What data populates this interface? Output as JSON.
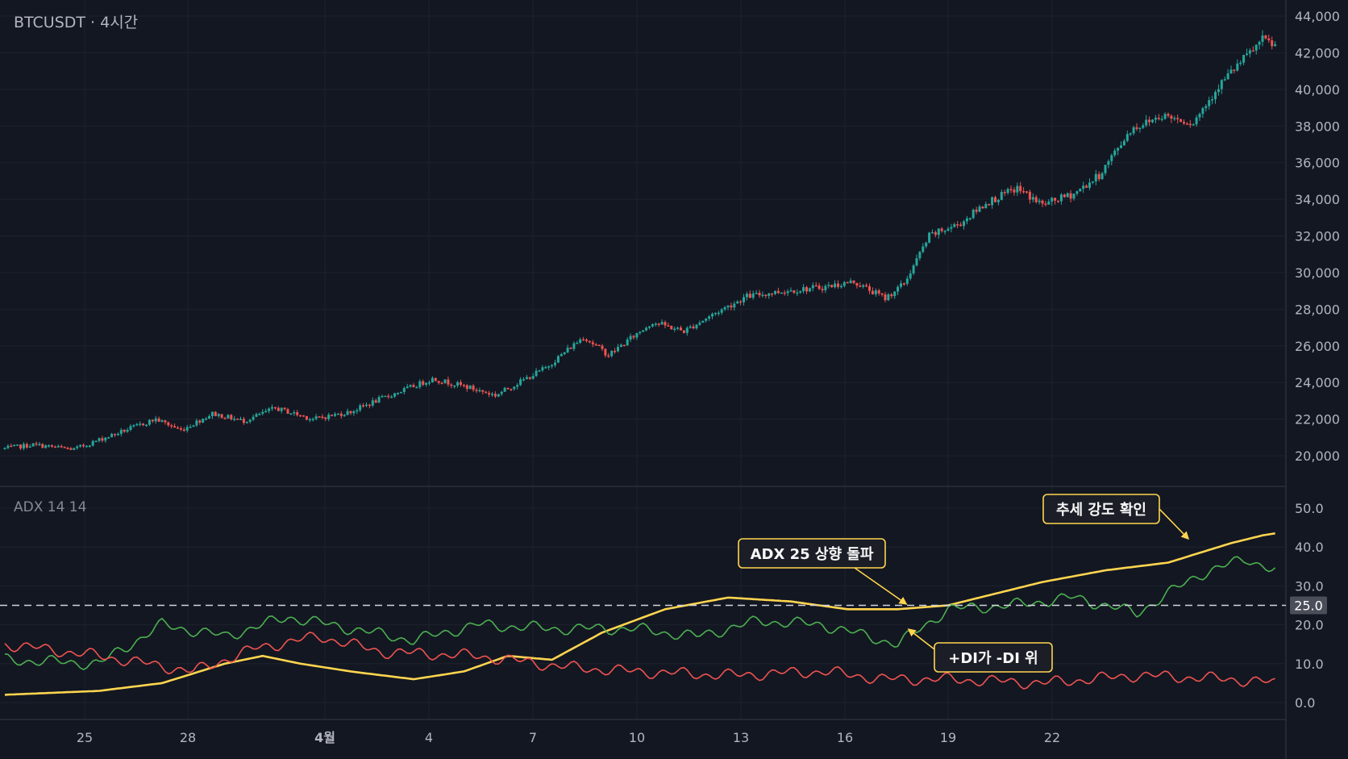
{
  "chart_data": [
    {
      "type": "candlestick",
      "title": "BTCUSDT · 4시간",
      "y_axis_ticks": [
        "20,000",
        "22,000",
        "24,000",
        "26,000",
        "28,000",
        "30,000",
        "32,000",
        "34,000",
        "36,000",
        "38,000",
        "40,000",
        "42,000",
        "44,000"
      ],
      "ylim": [
        19000,
        45000
      ],
      "x_axis_ticks": [
        "25",
        "28",
        "4월",
        "4",
        "7",
        "10",
        "13",
        "16",
        "19",
        "22"
      ],
      "x_axis_emphasized": "4월",
      "colors": {
        "up": "#26a69a",
        "down": "#ef5350",
        "background": "#131722",
        "grid": "#1f2430"
      },
      "price_path": [
        [
          0,
          20400
        ],
        [
          9,
          20600
        ],
        [
          22,
          20350
        ],
        [
          32,
          21000
        ],
        [
          48,
          22000
        ],
        [
          56,
          21400
        ],
        [
          66,
          22300
        ],
        [
          76,
          21900
        ],
        [
          86,
          22600
        ],
        [
          98,
          22000
        ],
        [
          110,
          22400
        ],
        [
          118,
          23000
        ],
        [
          130,
          23800
        ],
        [
          136,
          24200
        ],
        [
          146,
          23800
        ],
        [
          156,
          23300
        ],
        [
          172,
          24800
        ],
        [
          184,
          26500
        ],
        [
          192,
          25500
        ],
        [
          206,
          27300
        ],
        [
          216,
          26800
        ],
        [
          226,
          27800
        ],
        [
          236,
          28700
        ],
        [
          248,
          29000
        ],
        [
          260,
          29200
        ],
        [
          270,
          29500
        ],
        [
          280,
          28600
        ],
        [
          286,
          29400
        ],
        [
          294,
          32000
        ],
        [
          304,
          32700
        ],
        [
          312,
          33800
        ],
        [
          322,
          34600
        ],
        [
          330,
          33700
        ],
        [
          340,
          34300
        ],
        [
          348,
          35300
        ],
        [
          358,
          37800
        ],
        [
          368,
          38600
        ],
        [
          378,
          38200
        ],
        [
          386,
          40200
        ],
        [
          392,
          41300
        ],
        [
          400,
          42700
        ],
        [
          404,
          42400
        ]
      ],
      "num_candles": 405
    },
    {
      "type": "line",
      "title": "ADX 14 14",
      "y_axis_ticks": [
        "0.0",
        "10.0",
        "20.0",
        "30.0",
        "40.0",
        "50.0"
      ],
      "ylim": [
        -3,
        53
      ],
      "threshold": {
        "value": 25,
        "label": "25.0"
      },
      "series": [
        {
          "name": "ADX",
          "color": "#ffd54f",
          "points": [
            [
              0,
              2
            ],
            [
              30,
              3
            ],
            [
              50,
              5
            ],
            [
              70,
              10
            ],
            [
              82,
              12
            ],
            [
              94,
              10
            ],
            [
              110,
              8
            ],
            [
              130,
              6
            ],
            [
              146,
              8
            ],
            [
              160,
              12
            ],
            [
              174,
              11
            ],
            [
              190,
              18
            ],
            [
              210,
              24
            ],
            [
              230,
              27
            ],
            [
              250,
              26
            ],
            [
              268,
              24
            ],
            [
              284,
              24
            ],
            [
              300,
              25
            ],
            [
              330,
              31
            ],
            [
              350,
              34
            ],
            [
              370,
              36
            ],
            [
              390,
              41
            ],
            [
              400,
              43
            ],
            [
              404,
              43.5
            ]
          ]
        },
        {
          "name": "+DI",
          "color": "#4caf50",
          "points": [
            [
              0,
              11
            ],
            [
              30,
              10
            ],
            [
              50,
              20
            ],
            [
              70,
              17
            ],
            [
              90,
              22
            ],
            [
              110,
              19
            ],
            [
              130,
              16
            ],
            [
              150,
              20
            ],
            [
              175,
              19
            ],
            [
              200,
              19
            ],
            [
              220,
              17
            ],
            [
              240,
              21
            ],
            [
              260,
              20
            ],
            [
              284,
              15
            ],
            [
              300,
              24
            ],
            [
              320,
              25
            ],
            [
              340,
              27
            ],
            [
              360,
              23
            ],
            [
              380,
              33
            ],
            [
              395,
              37
            ],
            [
              404,
              34
            ]
          ]
        },
        {
          "name": "-DI",
          "color": "#ef5350",
          "points": [
            [
              0,
              15
            ],
            [
              30,
              12
            ],
            [
              60,
              8
            ],
            [
              80,
              14
            ],
            [
              100,
              17
            ],
            [
              120,
              13
            ],
            [
              150,
              12
            ],
            [
              180,
              9
            ],
            [
              200,
              8
            ],
            [
              230,
              7
            ],
            [
              260,
              8
            ],
            [
              280,
              6
            ],
            [
              300,
              6
            ],
            [
              330,
              5
            ],
            [
              360,
              7
            ],
            [
              390,
              6
            ],
            [
              404,
              5
            ]
          ]
        }
      ],
      "annotations": [
        {
          "text": "ADX 25 상향 돌파"
        },
        {
          "text": "추세 강도 확인"
        },
        {
          "text": "+DI가 -DI 위"
        }
      ]
    }
  ]
}
